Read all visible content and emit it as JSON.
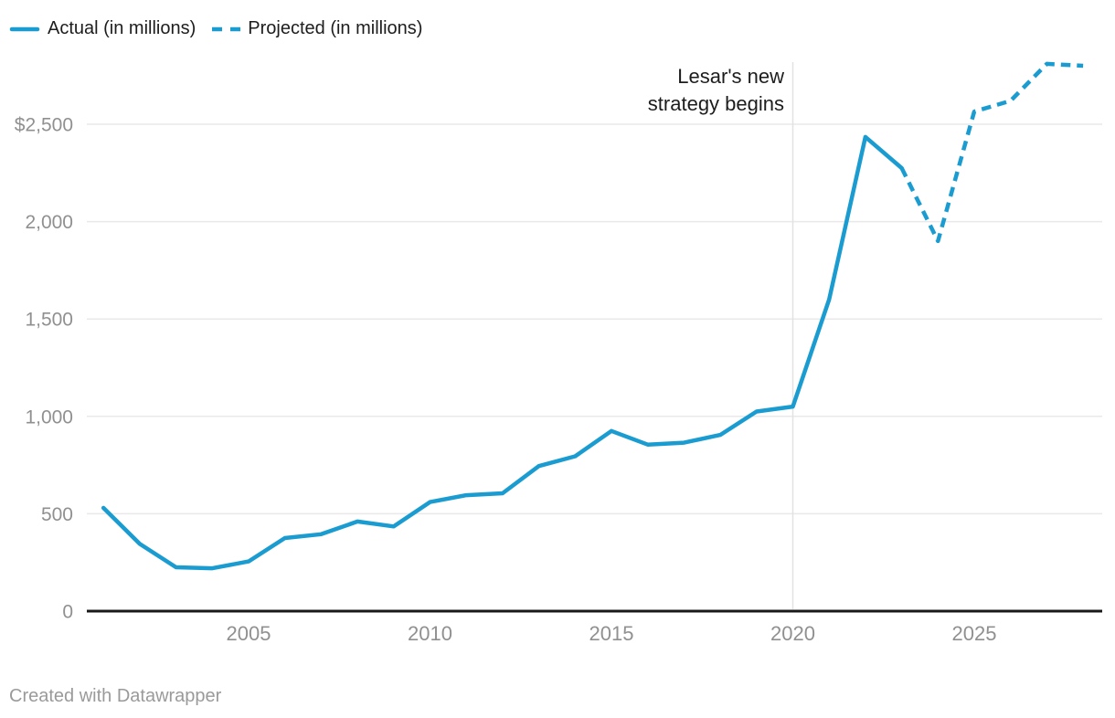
{
  "legend": {
    "actual_label": "Actual (in millions)",
    "projected_label": "Projected (in millions)"
  },
  "annotation": {
    "lines": [
      "Lesar's new",
      "strategy begins"
    ],
    "vline_year": 2020
  },
  "footer": {
    "attribution": "Created with Datawrapper"
  },
  "colors": {
    "line": "#1b9cd1",
    "grid": "#e9e9e9",
    "vline": "#e2e2e2",
    "axis": "#191919",
    "tick_label": "#909090",
    "text": "#1d1d1d",
    "footer_text": "#9a9a9a",
    "background": "#ffffff"
  },
  "chart_data": {
    "type": "line",
    "title": "",
    "xlabel": "",
    "ylabel": "",
    "currency_prefix_on_top_tick": "$",
    "grid": "horizontal",
    "legend_position": "top-left",
    "xlim": [
      2000.5,
      2028.6
    ],
    "ylim": [
      0,
      2835
    ],
    "x_ticks": {
      "labels": [
        "2005",
        "2010",
        "2015",
        "2020",
        "2025"
      ],
      "values": [
        2005,
        2010,
        2015,
        2020,
        2025
      ]
    },
    "y_ticks": {
      "labels": [
        "$2,500",
        "2,000",
        "1,500",
        "1,000",
        "500",
        "0"
      ],
      "values": [
        2500,
        2000,
        1500,
        1000,
        500,
        0
      ]
    },
    "series": [
      {
        "name": "Actual (in millions)",
        "style": "solid",
        "years": [
          2001,
          2002,
          2003,
          2004,
          2005,
          2006,
          2007,
          2008,
          2009,
          2010,
          2011,
          2012,
          2013,
          2014,
          2015,
          2016,
          2017,
          2018,
          2019,
          2020,
          2021,
          2022,
          2023
        ],
        "values": [
          530,
          345,
          225,
          220,
          255,
          375,
          395,
          460,
          435,
          560,
          595,
          605,
          745,
          795,
          925,
          855,
          865,
          905,
          1025,
          1050,
          1600,
          2435,
          2275
        ]
      },
      {
        "name": "Projected (in millions)",
        "style": "dashed",
        "years": [
          2023,
          2024,
          2025,
          2026,
          2027,
          2028
        ],
        "values": [
          2275,
          1900,
          2565,
          2620,
          2810,
          2800
        ]
      }
    ],
    "annotation": {
      "text": "Lesar's new strategy begins",
      "vline_year": 2020
    }
  }
}
